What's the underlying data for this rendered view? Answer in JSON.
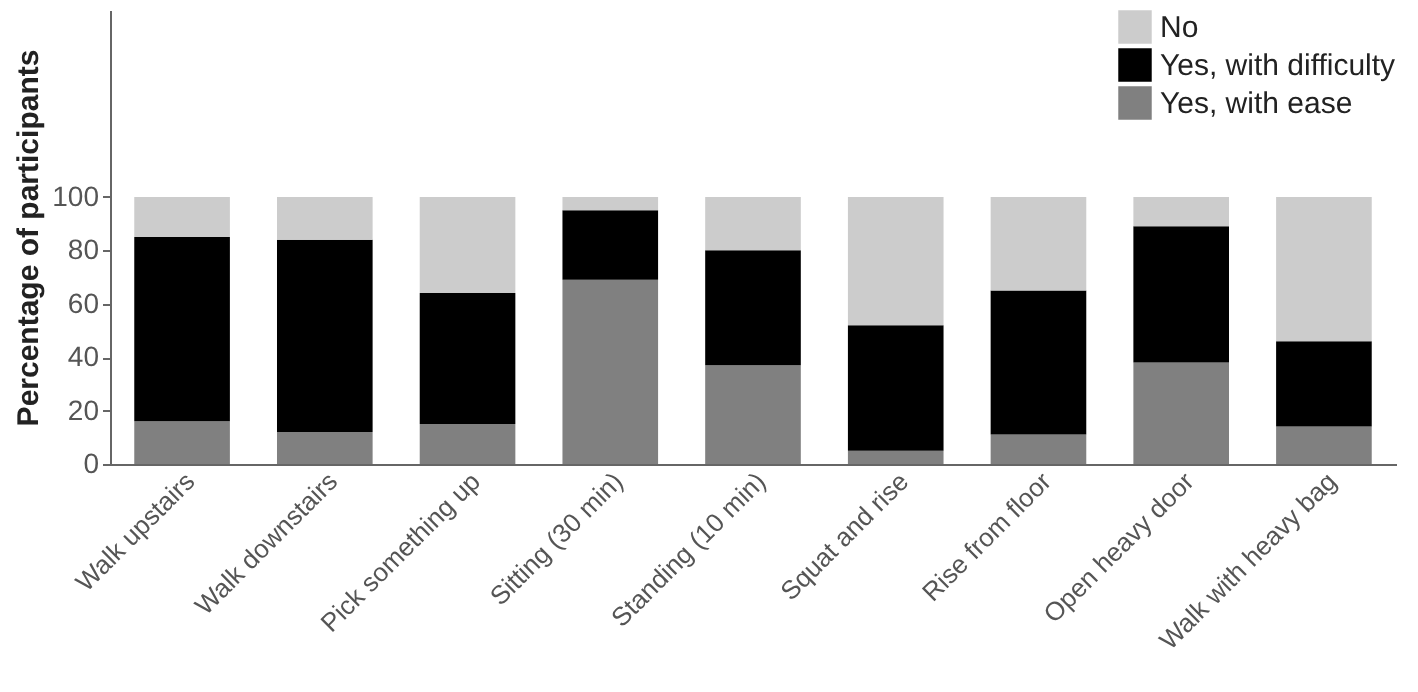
{
  "chart_data": {
    "type": "bar",
    "stacked": true,
    "ylabel": "Percentage of participants",
    "categories": [
      "Walk upstairs",
      "Walk downstairs",
      "Pick something up",
      "Sitting (30 min)",
      "Standing (10 min)",
      "Squat and rise",
      "Rise from floor",
      "Open heavy door",
      "Walk with heavy bag"
    ],
    "series": [
      {
        "name": "Yes, with ease",
        "color": "#808080",
        "values": [
          16,
          12,
          15,
          69,
          37,
          5,
          11,
          38,
          14
        ]
      },
      {
        "name": "Yes, with difficulty",
        "color": "#000000",
        "values": [
          69,
          72,
          49,
          26,
          43,
          47,
          54,
          51,
          32
        ]
      },
      {
        "name": "No",
        "color": "#cccccc",
        "values": [
          15,
          16,
          36,
          5,
          20,
          48,
          35,
          11,
          54
        ]
      }
    ],
    "ylim": [
      0,
      170
    ],
    "yticks": [
      0,
      20,
      40,
      60,
      80,
      100
    ],
    "grid": false,
    "legend": "top right"
  }
}
